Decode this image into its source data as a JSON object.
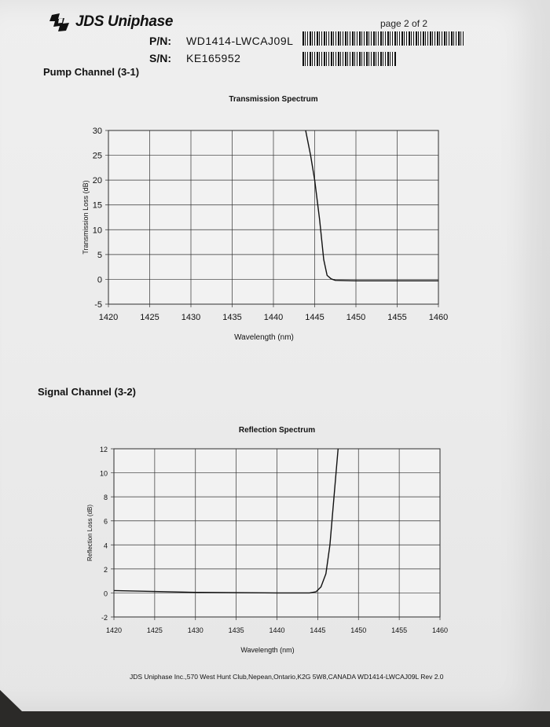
{
  "header": {
    "company": "JDS Uniphase",
    "page": "page 2 of 2",
    "pn_label": "P/N:",
    "pn_value": "WD1414-LWCAJ09L",
    "sn_label": "S/N:",
    "sn_value": "KE165952"
  },
  "sections": {
    "pump": "Pump Channel (3-1)",
    "signal": "Signal Channel (3-2)"
  },
  "footer": "JDS Uniphase Inc.,570 West Hunt Club,Nepean,Ontario,K2G 5W8,CANADA   WD1414-LWCAJ09L Rev  2.0",
  "chart_data": [
    {
      "type": "line",
      "title": "Transmission Spectrum",
      "xlabel": "Wavelength (nm)",
      "ylabel": "Transmission Loss (dB)",
      "xlim": [
        1420,
        1460
      ],
      "ylim": [
        -5,
        30
      ],
      "xticks": [
        1420,
        1425,
        1430,
        1435,
        1440,
        1445,
        1450,
        1455,
        1460
      ],
      "yticks": [
        -5,
        0,
        5,
        10,
        15,
        20,
        25,
        30
      ],
      "grid": true,
      "series": [
        {
          "x": [
            1443.9,
            1444.5,
            1445,
            1445.6,
            1446.1,
            1446.5,
            1447,
            1447.5,
            1450,
            1455,
            1460
          ],
          "y": [
            30,
            25,
            20,
            12,
            4,
            0.8,
            0.1,
            -0.2,
            -0.3,
            -0.3,
            -0.3
          ]
        }
      ]
    },
    {
      "type": "line",
      "title": "Reflection Spectrum",
      "xlabel": "Wavelength (nm)",
      "ylabel": "Reflection Loss (dB)",
      "xlim": [
        1420,
        1460
      ],
      "ylim": [
        -2,
        12
      ],
      "xticks": [
        1420,
        1425,
        1430,
        1435,
        1440,
        1445,
        1450,
        1455,
        1460
      ],
      "yticks": [
        -2,
        0,
        2,
        4,
        6,
        8,
        10,
        12
      ],
      "grid": true,
      "series": [
        {
          "x": [
            1420,
            1430,
            1440,
            1444,
            1444.8,
            1445.4,
            1446,
            1446.5,
            1447,
            1447.5
          ],
          "y": [
            0.2,
            0.05,
            0,
            0,
            0.1,
            0.5,
            1.6,
            4,
            8,
            12
          ]
        }
      ]
    }
  ]
}
